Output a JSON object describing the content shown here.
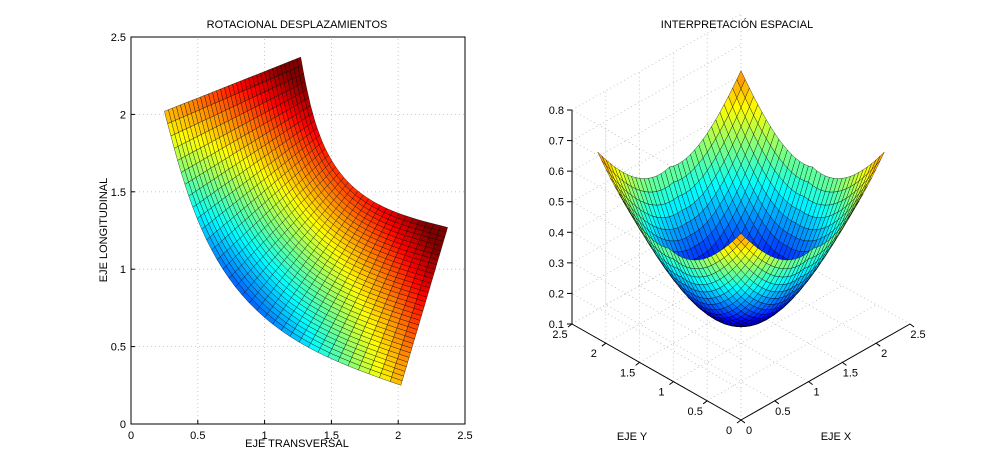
{
  "figure": {
    "background": "#ffffff"
  },
  "chart_data": [
    {
      "type": "surface-2d",
      "title": "ROTACIONAL DESPLAZAMIENTOS",
      "xlabel": "EJE TRANSVERSAL",
      "ylabel": "EJE LONGITUDINAL",
      "xlim": [
        0,
        2.5
      ],
      "ylim": [
        0,
        2.5
      ],
      "xticks": [
        0,
        0.5,
        1,
        1.5,
        2,
        2.5
      ],
      "yticks": [
        0,
        0.5,
        1,
        1.5,
        2,
        2.5
      ],
      "xtick_labels": [
        "0",
        "0.5",
        "1",
        "1.5",
        "2",
        "2.5"
      ],
      "ytick_labels": [
        "0",
        "0.5",
        "1",
        "1.5",
        "2",
        "2.5"
      ],
      "grid": true,
      "colormap": "jet",
      "mesh_resolution": [
        34,
        34
      ],
      "corners": {
        "top_left": [
          0.25,
          2.02
        ],
        "top_right": [
          1.27,
          2.37
        ],
        "right": [
          2.37,
          1.27
        ],
        "bottom": [
          2.02,
          0.25
        ]
      }
    },
    {
      "type": "surface-3d",
      "title": "INTERPRETACIÓN ESPACIAL",
      "xlabel": "EJE X",
      "ylabel": "EJE Y",
      "xlim": [
        0,
        2.5
      ],
      "ylim": [
        0,
        2.5
      ],
      "zlim": [
        0.1,
        0.8
      ],
      "xticks": [
        0,
        0.5,
        1,
        1.5,
        2,
        2.5
      ],
      "yticks": [
        0,
        0.5,
        1,
        1.5,
        2,
        2.5
      ],
      "zticks": [
        0.1,
        0.2,
        0.3,
        0.4,
        0.5,
        0.6,
        0.7,
        0.8
      ],
      "xtick_labels": [
        "0",
        "0.5",
        "1",
        "1.5",
        "2",
        "2.5"
      ],
      "ytick_labels": [
        "0",
        "0.5",
        "1",
        "1.5",
        "2",
        "2.5"
      ],
      "ztick_labels": [
        "0.1",
        "0.2",
        "0.3",
        "0.4",
        "0.5",
        "0.6",
        "0.7",
        "0.8"
      ],
      "grid": true,
      "colormap": "jet",
      "mesh_resolution": [
        34,
        34
      ],
      "domain": {
        "u": [
          0.25,
          2.37
        ],
        "v": [
          0.25,
          2.37
        ]
      },
      "z_min": 0.1,
      "z_max": 0.83
    }
  ]
}
